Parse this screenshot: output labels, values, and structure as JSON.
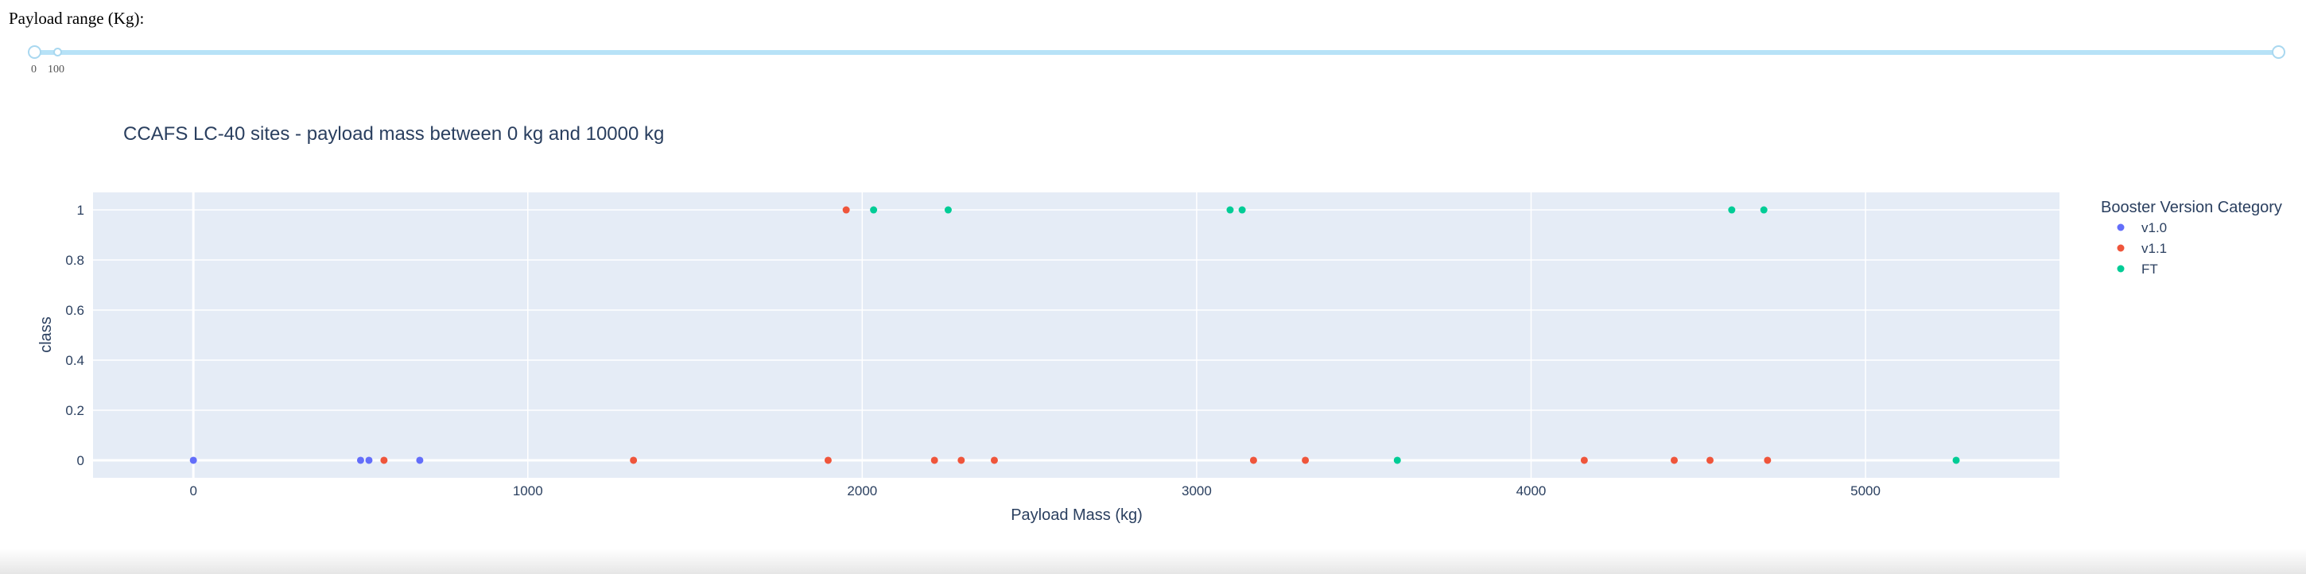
{
  "slider": {
    "label": "Payload range (Kg):",
    "marks": [
      "0",
      "100"
    ],
    "range_low": 0,
    "range_high": 10000,
    "max": 10000
  },
  "chart_data": {
    "type": "scatter",
    "title": "CCAFS LC-40 sites - payload mass between 0 kg and 10000 kg",
    "xlabel": "Payload Mass (kg)",
    "ylabel": "class",
    "xlim": [
      -300,
      5580
    ],
    "ylim": [
      -0.07,
      1.07
    ],
    "x_ticks": [
      0,
      1000,
      2000,
      3000,
      4000,
      5000
    ],
    "y_ticks": [
      0,
      0.2,
      0.4,
      0.6,
      0.8,
      1
    ],
    "y_tick_labels": [
      "0",
      "0.2",
      "0.4",
      "0.6",
      "0.8",
      "1"
    ],
    "grid": true,
    "legend_title": "Booster Version Category",
    "legend_position": "right",
    "series": [
      {
        "name": "v1.0",
        "color": "#636efa",
        "points": [
          [
            0,
            0
          ],
          [
            500,
            0
          ],
          [
            525,
            0
          ],
          [
            677,
            0
          ]
        ]
      },
      {
        "name": "v1.1",
        "color": "#ef553b",
        "points": [
          [
            570,
            0
          ],
          [
            1316,
            0
          ],
          [
            1898,
            0
          ],
          [
            1952,
            1
          ],
          [
            2216,
            0
          ],
          [
            2296,
            0
          ],
          [
            2395,
            0
          ],
          [
            3170,
            0
          ],
          [
            3325,
            0
          ],
          [
            4159,
            0
          ],
          [
            4428,
            0
          ],
          [
            4535,
            0
          ],
          [
            4707,
            0
          ]
        ]
      },
      {
        "name": "FT",
        "color": "#00cc96",
        "points": [
          [
            2034,
            1
          ],
          [
            2257,
            1
          ],
          [
            3100,
            1
          ],
          [
            3136,
            1
          ],
          [
            3600,
            0
          ],
          [
            4600,
            1
          ],
          [
            4696,
            1
          ],
          [
            5271,
            0
          ]
        ]
      }
    ]
  }
}
